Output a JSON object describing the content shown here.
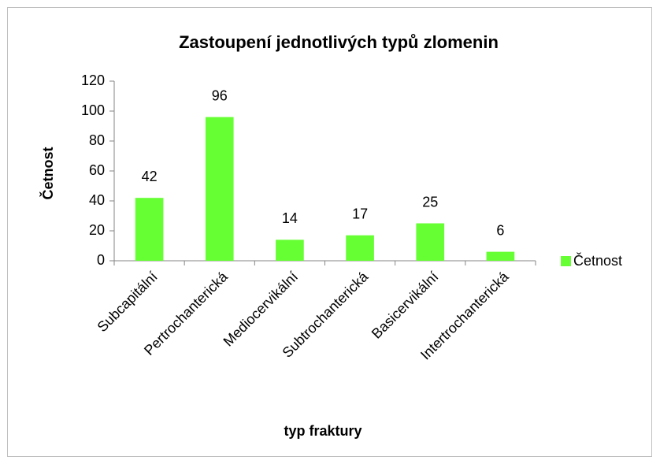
{
  "chart_data": {
    "type": "bar",
    "title": "Zastoupení jednotlivých typů zlomenin",
    "x_label": "typ fraktury",
    "y_label": "Četnost",
    "categories": [
      "Subcapitální",
      "Pertrochanterická",
      "Mediocervikální",
      "Subtrochanterická",
      "Basicervikální",
      "Intertrochanterická"
    ],
    "series": [
      {
        "name": "Četnost",
        "color": "#66ff33",
        "values": [
          42,
          96,
          14,
          17,
          25,
          6
        ]
      }
    ],
    "ylim": [
      0,
      120
    ],
    "yticks": [
      0,
      20,
      40,
      60,
      80,
      100,
      120
    ],
    "grid": false,
    "legend": "right",
    "data_labels": true
  }
}
